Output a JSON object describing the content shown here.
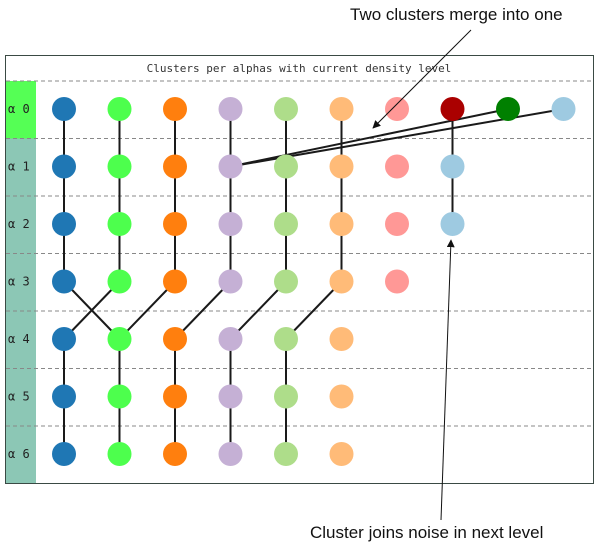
{
  "title": "Clusters per alphas with current density level",
  "annotations": {
    "merge": "Two clusters merge into one",
    "noise": "Cluster joins noise in next level"
  },
  "levels": [
    "α 0",
    "α 1",
    "α 2",
    "α 3",
    "α 4",
    "α 5",
    "α 6"
  ],
  "level_colors": {
    "highlight": "#55ff55",
    "default": "#8cc7b5",
    "separator": "#888888"
  },
  "cluster_colors": [
    "#1f77b4",
    "#4dff4d",
    "#ff7f0e",
    "#c5b0d5",
    "#aedd8a",
    "#ffbb78",
    "#ff9896",
    "#aa0000",
    "#008000",
    "#9ecae1"
  ],
  "nodes": [
    [
      0,
      0,
      0
    ],
    [
      0,
      1,
      1
    ],
    [
      0,
      2,
      2
    ],
    [
      0,
      3,
      3
    ],
    [
      0,
      4,
      4
    ],
    [
      0,
      5,
      5
    ],
    [
      0,
      6,
      6
    ],
    [
      0,
      7,
      7
    ],
    [
      0,
      8,
      8
    ],
    [
      0,
      9,
      9
    ],
    [
      1,
      0,
      0
    ],
    [
      1,
      1,
      1
    ],
    [
      1,
      2,
      2
    ],
    [
      1,
      3,
      3
    ],
    [
      1,
      4,
      4
    ],
    [
      1,
      5,
      5
    ],
    [
      1,
      6,
      6
    ],
    [
      1,
      7,
      9
    ],
    [
      2,
      0,
      0
    ],
    [
      2,
      1,
      1
    ],
    [
      2,
      2,
      2
    ],
    [
      2,
      3,
      3
    ],
    [
      2,
      4,
      4
    ],
    [
      2,
      5,
      5
    ],
    [
      2,
      6,
      6
    ],
    [
      2,
      7,
      9
    ],
    [
      3,
      0,
      0
    ],
    [
      3,
      1,
      1
    ],
    [
      3,
      2,
      2
    ],
    [
      3,
      3,
      3
    ],
    [
      3,
      4,
      4
    ],
    [
      3,
      5,
      5
    ],
    [
      3,
      6,
      6
    ],
    [
      4,
      0,
      0
    ],
    [
      4,
      1,
      1
    ],
    [
      4,
      2,
      2
    ],
    [
      4,
      3,
      3
    ],
    [
      4,
      4,
      4
    ],
    [
      4,
      5,
      5
    ],
    [
      5,
      0,
      0
    ],
    [
      5,
      1,
      1
    ],
    [
      5,
      2,
      2
    ],
    [
      5,
      3,
      3
    ],
    [
      5,
      4,
      4
    ],
    [
      5,
      5,
      5
    ],
    [
      6,
      0,
      0
    ],
    [
      6,
      1,
      1
    ],
    [
      6,
      2,
      2
    ],
    [
      6,
      3,
      3
    ],
    [
      6,
      4,
      4
    ],
    [
      6,
      5,
      5
    ]
  ],
  "edges": [
    [
      0,
      0,
      1,
      0
    ],
    [
      0,
      1,
      1,
      1
    ],
    [
      0,
      2,
      1,
      2
    ],
    [
      0,
      3,
      1,
      3
    ],
    [
      0,
      4,
      1,
      4
    ],
    [
      0,
      5,
      1,
      5
    ],
    [
      0,
      7,
      1,
      7
    ],
    [
      0,
      8,
      1,
      3
    ],
    [
      0,
      9,
      1,
      3
    ],
    [
      1,
      0,
      2,
      0
    ],
    [
      1,
      1,
      2,
      1
    ],
    [
      1,
      2,
      2,
      2
    ],
    [
      1,
      3,
      2,
      3
    ],
    [
      1,
      4,
      2,
      4
    ],
    [
      1,
      5,
      2,
      5
    ],
    [
      1,
      7,
      2,
      7
    ],
    [
      2,
      0,
      3,
      0
    ],
    [
      2,
      1,
      3,
      1
    ],
    [
      2,
      2,
      3,
      2
    ],
    [
      2,
      3,
      3,
      3
    ],
    [
      2,
      4,
      3,
      4
    ],
    [
      2,
      5,
      3,
      5
    ],
    [
      3,
      0,
      4,
      1
    ],
    [
      3,
      1,
      4,
      0
    ],
    [
      3,
      2,
      4,
      1
    ],
    [
      3,
      3,
      4,
      2
    ],
    [
      3,
      4,
      4,
      3
    ],
    [
      3,
      5,
      4,
      4
    ],
    [
      4,
      0,
      5,
      0
    ],
    [
      4,
      1,
      5,
      1
    ],
    [
      4,
      2,
      5,
      2
    ],
    [
      4,
      3,
      5,
      3
    ],
    [
      4,
      4,
      5,
      4
    ],
    [
      5,
      0,
      6,
      0
    ],
    [
      5,
      1,
      6,
      1
    ],
    [
      5,
      2,
      6,
      2
    ],
    [
      5,
      3,
      6,
      3
    ],
    [
      5,
      4,
      6,
      4
    ]
  ]
}
